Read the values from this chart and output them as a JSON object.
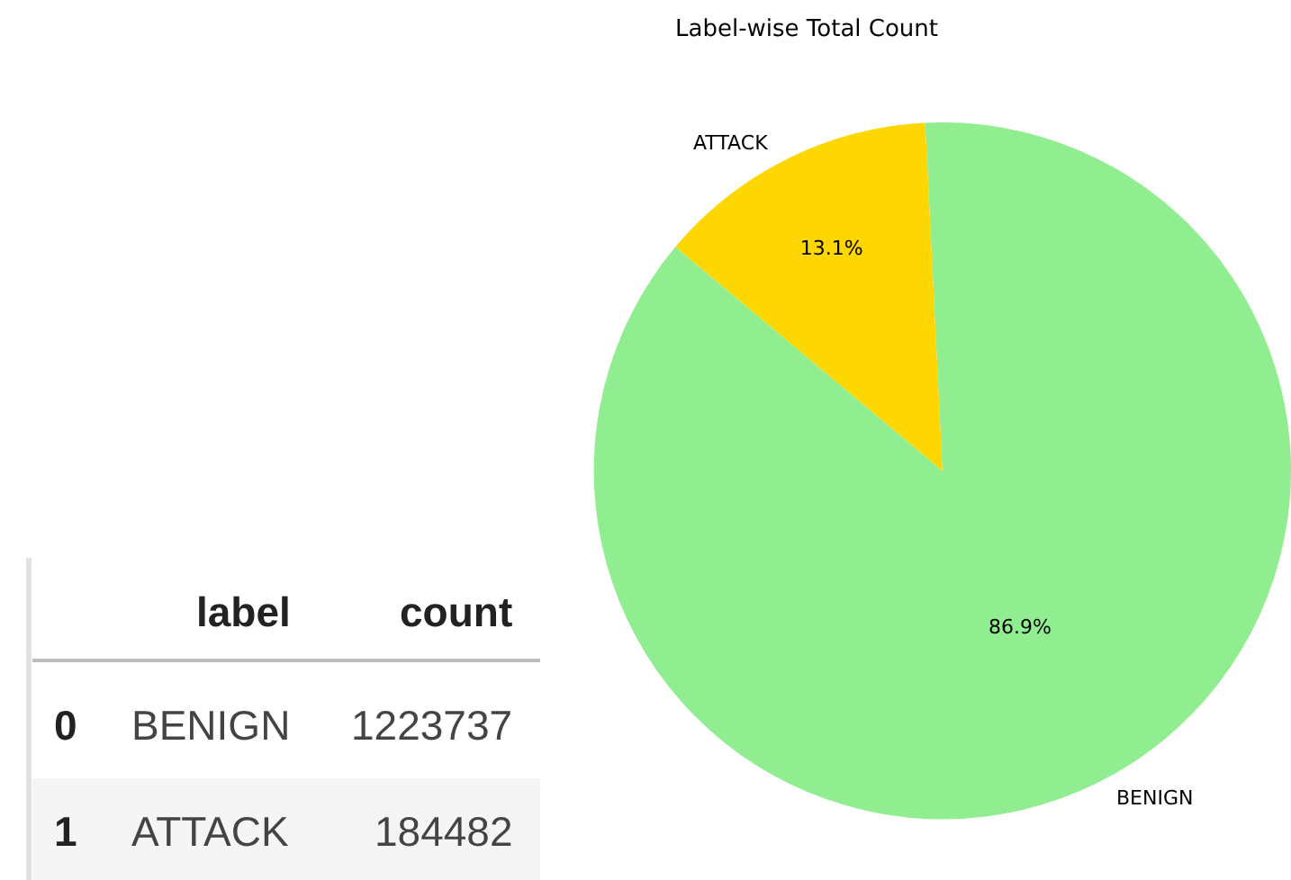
{
  "chart_data": [
    {
      "type": "other",
      "annotations": [
        "label",
        "count",
        "0",
        "BENIGN",
        "1223737",
        "1",
        "ATTACK",
        "184482"
      ]
    },
    {
      "type": "pie",
      "title": "Label-wise Total Count",
      "categories": [
        "BENIGN",
        "ATTACK"
      ],
      "values": [
        86.9,
        13.1
      ],
      "colors": [
        "#90ee90",
        "#ffd700"
      ],
      "value_labels": [
        "86.9%",
        "13.1%"
      ]
    }
  ]
}
